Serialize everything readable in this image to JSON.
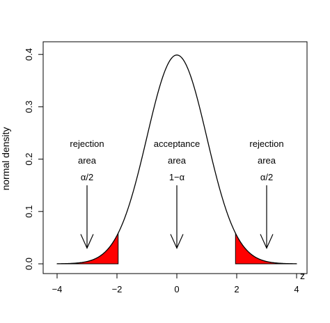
{
  "chart_data": {
    "type": "area",
    "title": "",
    "xlabel": "z",
    "ylabel": "normal density",
    "xlim": [
      -4.4,
      4.4
    ],
    "ylim": [
      0,
      0.42
    ],
    "x_ticks": [
      -4,
      -2,
      0,
      2,
      4
    ],
    "x_tick_labels": [
      "−4",
      "−2",
      "0",
      "2",
      "4"
    ],
    "y_ticks": [
      0.0,
      0.1,
      0.2,
      0.3,
      0.4
    ],
    "y_tick_labels": [
      "0.0",
      "0.1",
      "0.2",
      "0.3",
      "0.4"
    ],
    "series": [
      {
        "distribution": "standard normal",
        "mean": 0,
        "sd": 1,
        "x_range": [
          -4,
          4
        ],
        "color": "#000000"
      }
    ],
    "shaded_regions": [
      {
        "from": -4,
        "to": -1.96,
        "color": "#ff0000"
      },
      {
        "from": 1.96,
        "to": 4,
        "color": "#ff0000"
      }
    ],
    "annotations": [
      {
        "lines": [
          "rejection",
          "area",
          "α/2"
        ],
        "x": -3,
        "arrow_from_y": 0.15,
        "arrow_to_y": 0.03
      },
      {
        "lines": [
          "acceptance",
          "area",
          "1−α"
        ],
        "x": 0,
        "arrow_from_y": 0.15,
        "arrow_to_y": 0.03
      },
      {
        "lines": [
          "rejection",
          "area",
          "α/2"
        ],
        "x": 3,
        "arrow_from_y": 0.15,
        "arrow_to_y": 0.03
      }
    ],
    "grid": false,
    "legend": "none"
  }
}
